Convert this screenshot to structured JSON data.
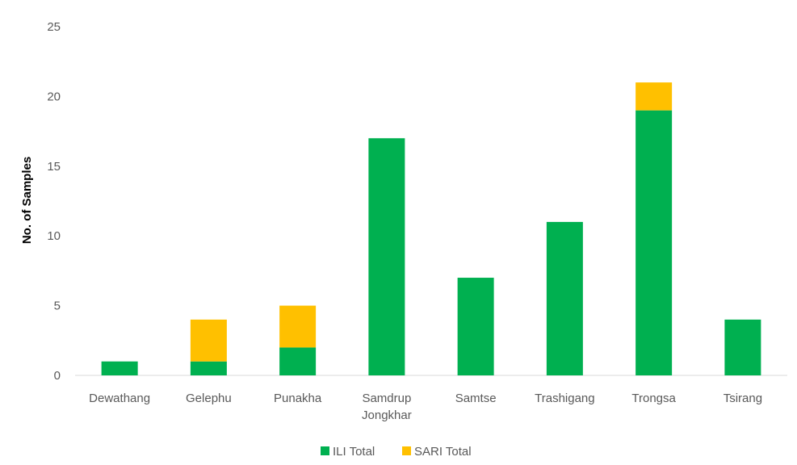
{
  "chart_data": {
    "type": "bar",
    "stacked": true,
    "categories": [
      [
        "Dewathang"
      ],
      [
        "Gelephu"
      ],
      [
        "Punakha"
      ],
      [
        "Samdrup",
        "Jongkhar"
      ],
      [
        "Samtse"
      ],
      [
        "Trashigang"
      ],
      [
        "Trongsa"
      ],
      [
        "Tsirang"
      ]
    ],
    "series": [
      {
        "name": "ILI Total",
        "color": "#00b050",
        "values": [
          1,
          1,
          2,
          17,
          7,
          11,
          19,
          4
        ]
      },
      {
        "name": "SARI Total",
        "color": "#ffc000",
        "values": [
          0,
          3,
          3,
          0,
          0,
          0,
          2,
          0
        ]
      }
    ],
    "title": "",
    "xlabel": "",
    "ylabel": "No. of Samples",
    "ylim": [
      0,
      25
    ],
    "yticks": [
      "0",
      "5",
      "10",
      "15",
      "20",
      "25"
    ],
    "grid": false,
    "legend_position": "bottom"
  }
}
